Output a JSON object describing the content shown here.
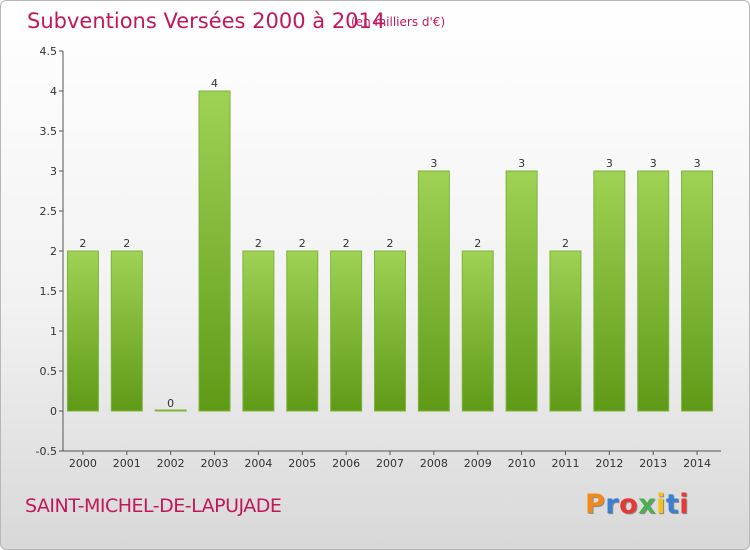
{
  "header": {
    "title": "Subventions Versées 2000 à 2014",
    "unit": "(en milliers d'€)"
  },
  "footer": {
    "commune": "SAINT-MICHEL-DE-LAPUJADE",
    "logo": "Proxiti",
    "logo_colors": [
      "#f08a1c",
      "#3a7fd0",
      "#e53935",
      "#4caf50",
      "#f2c21b",
      "#3a7fd0",
      "#e53935"
    ]
  },
  "chart_data": {
    "type": "bar",
    "title": "Subventions Versées 2000 à 2014",
    "subtitle": "(en milliers d'€)",
    "categories": [
      "2000",
      "2001",
      "2002",
      "2003",
      "2004",
      "2005",
      "2006",
      "2007",
      "2008",
      "2009",
      "2010",
      "2011",
      "2012",
      "2013",
      "2014"
    ],
    "values": [
      2,
      2,
      0,
      4,
      2,
      2,
      2,
      2,
      3,
      2,
      3,
      2,
      3,
      3,
      3
    ],
    "value_labels": [
      "2",
      "2",
      "0",
      "4",
      "2",
      "2",
      "2",
      "2",
      "3",
      "2",
      "3",
      "2",
      "3",
      "3",
      "3"
    ],
    "y_ticks": [
      "4.5",
      "4",
      "3.5",
      "3",
      "2.5",
      "2",
      "1.5",
      "1",
      "0.5",
      "0",
      "-0.5"
    ],
    "ylim": [
      -0.5,
      4.5
    ],
    "grid": false,
    "bar_color_top": "#9fd255",
    "bar_color_bottom": "#5f9a17"
  }
}
